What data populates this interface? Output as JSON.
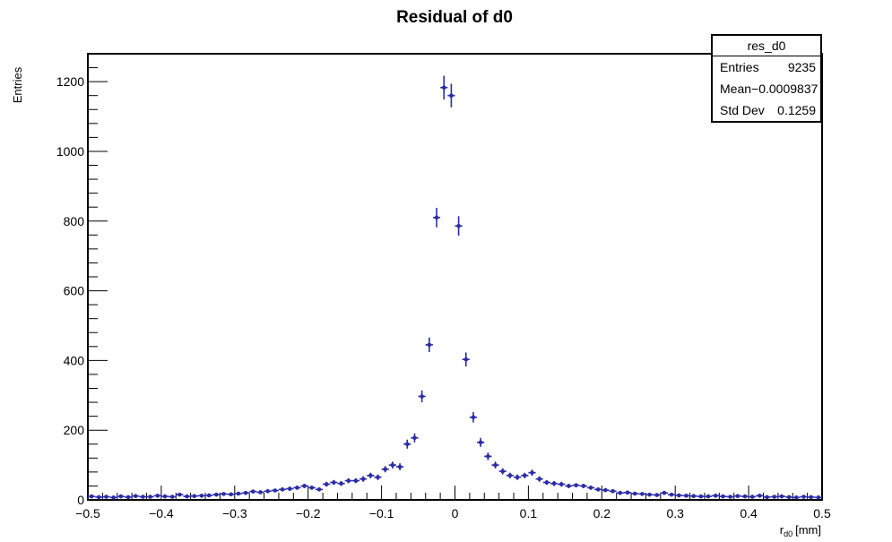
{
  "chart_data": {
    "type": "scatter",
    "title": "Residual of d0",
    "xlabel": "r_d0 [mm]",
    "xlabel_main": "r",
    "xlabel_sub": "d0",
    "xlabel_unit": "[mm]",
    "ylabel": "Entries",
    "xlim": [
      -0.5,
      0.5
    ],
    "ylim": [
      0,
      1280
    ],
    "grid": false,
    "marker_color": "#2c2ca8",
    "x_ticks": [
      -0.5,
      -0.4,
      -0.3,
      -0.2,
      -0.1,
      0,
      0.1,
      0.2,
      0.3,
      0.4,
      0.5
    ],
    "x_tick_labels": [
      "−0.5",
      "−0.4",
      "−0.3",
      "−0.2",
      "−0.1",
      "0",
      "0.1",
      "0.2",
      "0.3",
      "0.4",
      "0.5"
    ],
    "y_ticks": [
      0,
      200,
      400,
      600,
      800,
      1000,
      1200
    ],
    "y_tick_labels": [
      "0",
      "200",
      "400",
      "600",
      "800",
      "1000",
      "1200"
    ],
    "x": [
      -0.495,
      -0.485,
      -0.475,
      -0.465,
      -0.455,
      -0.445,
      -0.435,
      -0.425,
      -0.415,
      -0.405,
      -0.395,
      -0.385,
      -0.375,
      -0.365,
      -0.355,
      -0.345,
      -0.335,
      -0.325,
      -0.315,
      -0.305,
      -0.295,
      -0.285,
      -0.275,
      -0.265,
      -0.255,
      -0.245,
      -0.235,
      -0.225,
      -0.215,
      -0.205,
      -0.195,
      -0.185,
      -0.175,
      -0.165,
      -0.155,
      -0.145,
      -0.135,
      -0.125,
      -0.115,
      -0.105,
      -0.095,
      -0.085,
      -0.075,
      -0.065,
      -0.055,
      -0.045,
      -0.035,
      -0.025,
      -0.015,
      -0.005,
      0.005,
      0.015,
      0.025,
      0.035,
      0.045,
      0.055,
      0.065,
      0.075,
      0.085,
      0.095,
      0.105,
      0.115,
      0.125,
      0.135,
      0.145,
      0.155,
      0.165,
      0.175,
      0.185,
      0.195,
      0.205,
      0.215,
      0.225,
      0.235,
      0.245,
      0.255,
      0.265,
      0.275,
      0.285,
      0.295,
      0.305,
      0.315,
      0.325,
      0.335,
      0.345,
      0.355,
      0.365,
      0.375,
      0.385,
      0.395,
      0.405,
      0.415,
      0.425,
      0.435,
      0.445,
      0.455,
      0.465,
      0.475,
      0.485,
      0.495
    ],
    "values": [
      10,
      8,
      9,
      7,
      10,
      8,
      11,
      9,
      9,
      12,
      10,
      9,
      15,
      10,
      11,
      12,
      13,
      15,
      17,
      16,
      18,
      20,
      24,
      22,
      25,
      27,
      30,
      32,
      35,
      40,
      35,
      30,
      45,
      50,
      47,
      55,
      55,
      60,
      70,
      65,
      88,
      100,
      95,
      160,
      178,
      297,
      445,
      810,
      1183,
      1160,
      786,
      403,
      237,
      165,
      125,
      100,
      82,
      70,
      65,
      70,
      78,
      60,
      50,
      47,
      45,
      40,
      42,
      40,
      35,
      30,
      28,
      25,
      20,
      21,
      18,
      17,
      15,
      14,
      20,
      15,
      13,
      12,
      11,
      10,
      10,
      12,
      10,
      9,
      11,
      10,
      9,
      12,
      8,
      9,
      10,
      8,
      7,
      9,
      8,
      7
    ],
    "errors": [
      3,
      3,
      3,
      3,
      3,
      3,
      3,
      3,
      3,
      3,
      3,
      3,
      4,
      3,
      3,
      3,
      4,
      4,
      4,
      4,
      4,
      4,
      5,
      5,
      5,
      5,
      5,
      6,
      6,
      6,
      6,
      5,
      7,
      7,
      7,
      7,
      7,
      8,
      8,
      8,
      9,
      10,
      10,
      13,
      13,
      17,
      21,
      28,
      34,
      34,
      28,
      20,
      15,
      13,
      11,
      10,
      9,
      8,
      8,
      8,
      9,
      8,
      7,
      7,
      7,
      6,
      6,
      6,
      6,
      5,
      5,
      5,
      4,
      5,
      4,
      4,
      4,
      4,
      4,
      4,
      4,
      3,
      3,
      3,
      3,
      3,
      3,
      3,
      3,
      3,
      3,
      3,
      3,
      3,
      3,
      3,
      3,
      3,
      3,
      3
    ]
  },
  "stats": {
    "name": "res_d0",
    "rows": [
      {
        "label": "Entries",
        "value": "9235"
      },
      {
        "label": "Mean",
        "value": "−0.0009837"
      },
      {
        "label": "Std Dev",
        "value": "0.1259"
      }
    ]
  }
}
